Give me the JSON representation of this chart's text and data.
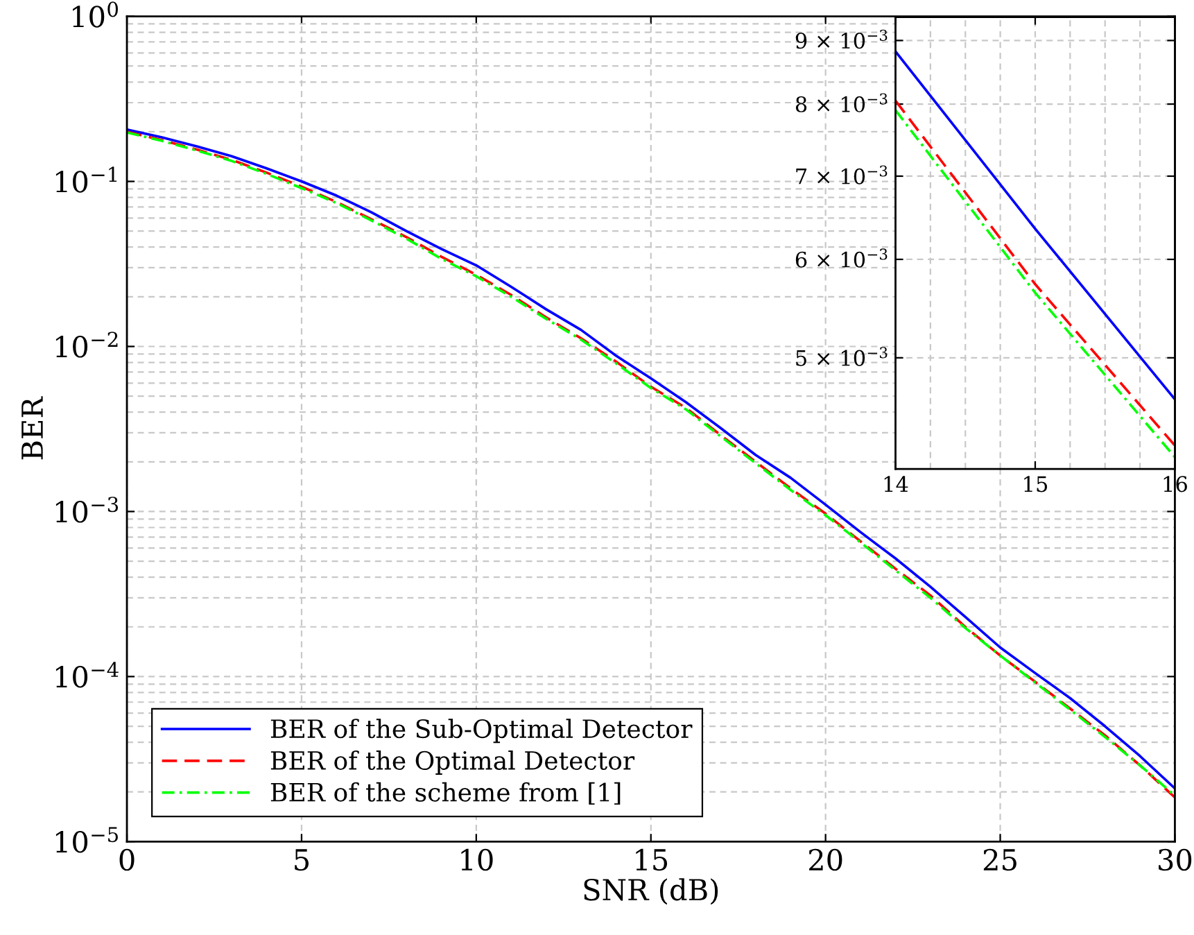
{
  "chart_data": [
    {
      "type": "line",
      "xlabel": "SNR (dB)",
      "ylabel": "BER",
      "log": "y",
      "grid": true,
      "legend": "bottom left",
      "xlim": [
        0,
        30
      ],
      "xticks": [
        0,
        5,
        10,
        15,
        20,
        25,
        30
      ],
      "ylim": [
        1e-05,
        1
      ],
      "yticks": [
        {
          "value": 1e-05,
          "label": "10$^{−5}$"
        },
        {
          "value": 0.0001,
          "label": "10$^{−4}$"
        },
        {
          "value": 0.001,
          "label": "10$^{−3}$"
        },
        {
          "value": 0.01,
          "label": "10$^{−2}$"
        },
        {
          "value": 0.1,
          "label": "10$^{−1}$"
        },
        {
          "value": 1,
          "label": "10$^{0}$"
        }
      ],
      "x": [
        0,
        1,
        2,
        3,
        4,
        5,
        6,
        7,
        8,
        9,
        10,
        11,
        12,
        13,
        14,
        15,
        16,
        17,
        18,
        19,
        20,
        21,
        22,
        23,
        24,
        25,
        26,
        27,
        28,
        29,
        30
      ],
      "series": [
        {
          "name": "BER of the Sub-Optimal Detector",
          "color": "#0000ff",
          "line_style": "solid",
          "values": [
            0.206,
            0.185,
            0.163,
            0.142,
            0.12,
            0.1,
            0.082,
            0.065,
            0.05,
            0.039,
            0.031,
            0.023,
            0.0168,
            0.0126,
            0.0088,
            0.0064,
            0.0046,
            0.0032,
            0.0022,
            0.0016,
            0.0011,
            0.00075,
            0.00052,
            0.00035,
            0.00023,
            0.00015,
            0.000105,
            7.4e-05,
            5e-05,
            3.3e-05,
            2.1e-05
          ]
        },
        {
          "name": "BER of the Optimal Detector",
          "color": "#ff0000",
          "line_style": "dashed",
          "values": [
            0.2,
            0.178,
            0.156,
            0.135,
            0.113,
            0.093,
            0.075,
            0.059,
            0.046,
            0.035,
            0.0272,
            0.0205,
            0.015,
            0.0112,
            0.0081,
            0.0057,
            0.00425,
            0.0029,
            0.002,
            0.00138,
            0.00097,
            0.00066,
            0.00045,
            0.00031,
            0.0002,
            0.000134,
            9.3e-05,
            6.4e-05,
            4.4e-05,
            2.9e-05,
            1.85e-05
          ]
        },
        {
          "name": "BER of the scheme from [1]",
          "color": "#00ff00",
          "line_style": "dashdot",
          "values": [
            0.198,
            0.176,
            0.154,
            0.133,
            0.111,
            0.091,
            0.074,
            0.058,
            0.045,
            0.034,
            0.0266,
            0.02,
            0.0147,
            0.011,
            0.0079,
            0.0056,
            0.00416,
            0.00285,
            0.00196,
            0.00135,
            0.00095,
            0.00065,
            0.00044,
            0.0003,
            0.000197,
            0.000134,
            9.2e-05,
            6.3e-05,
            4.3e-05,
            2.9e-05,
            1.9e-05
          ]
        }
      ]
    },
    {
      "type": "line",
      "log": "y",
      "grid": true,
      "xlim": [
        14,
        16
      ],
      "xticks": [
        14,
        15,
        16
      ],
      "ylim": [
        0.00407,
        0.0094
      ],
      "yticks": [
        {
          "value": 0.005,
          "label": "5 × 10$^{−3}$"
        },
        {
          "value": 0.006,
          "label": "6 × 10$^{−3}$"
        },
        {
          "value": 0.007,
          "label": "7 × 10$^{−3}$"
        },
        {
          "value": 0.008,
          "label": "8 × 10$^{−3}$"
        },
        {
          "value": 0.009,
          "label": "9 × 10$^{−3}$"
        }
      ],
      "x": [
        14,
        15,
        16
      ],
      "series": [
        {
          "color": "#0000ff",
          "line_style": "solid",
          "values": [
            0.00882,
            0.00635,
            0.00463
          ]
        },
        {
          "color": "#ff0000",
          "line_style": "dashed",
          "values": [
            0.00805,
            0.00573,
            0.00425
          ]
        },
        {
          "color": "#00ff00",
          "line_style": "dashdot",
          "values": [
            0.00791,
            0.00564,
            0.00416
          ]
        }
      ]
    }
  ]
}
